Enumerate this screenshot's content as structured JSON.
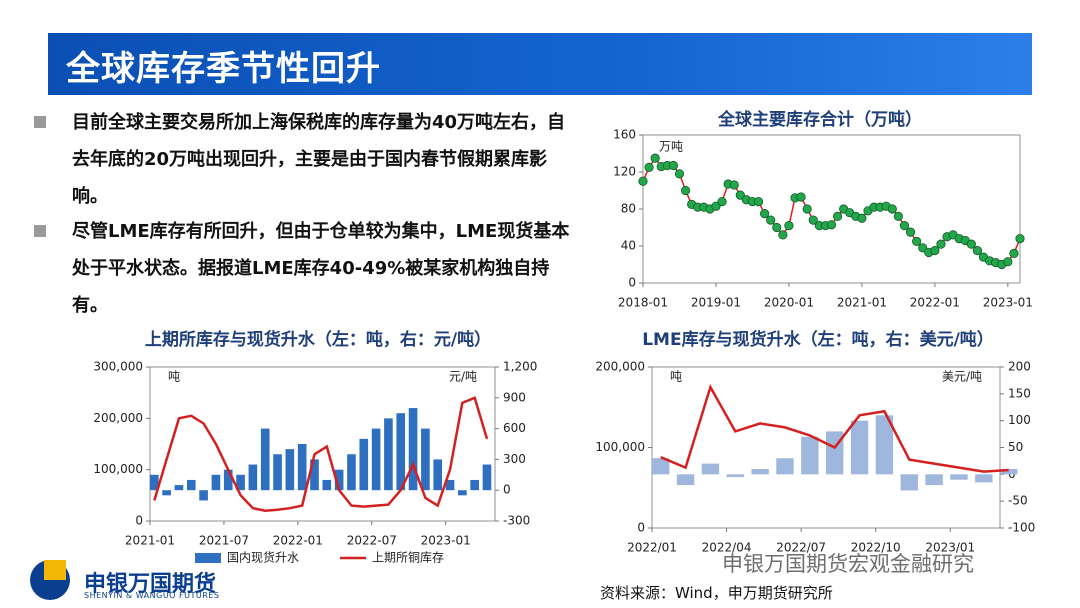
{
  "header": {
    "title": "全球库存季节性回升"
  },
  "bullets": [
    "目前全球主要交易所加上海保税库的库存量为40万吨左右，自去年底的20万吨出现回升，主要是由于国内春节假期累库影响。",
    "尽管LME库存有所回升，但由于仓单较为集中，LME现货基本处于平水状态。据报道LME库存40-49%被某家机构独自持有。"
  ],
  "source": "资料来源：Wind，申万期货研究所",
  "logo": {
    "name": "申银万国期货",
    "subtitle": "SHENYIN & WANGUO FUTURES"
  },
  "watermark": "申银万国期货宏观金融研究",
  "chart_data": [
    {
      "type": "line",
      "title": "全球主要库存合计（万吨）",
      "annotation": "万吨",
      "markers": true,
      "marker_color": "#22a84a",
      "x": [
        "2018-01",
        "2018-02",
        "2018-03",
        "2018-04",
        "2018-05",
        "2018-06",
        "2018-07",
        "2018-08",
        "2018-09",
        "2018-10",
        "2018-11",
        "2018-12",
        "2019-01",
        "2019-02",
        "2019-03",
        "2019-04",
        "2019-05",
        "2019-06",
        "2019-07",
        "2019-08",
        "2019-09",
        "2019-10",
        "2019-11",
        "2019-12",
        "2020-01",
        "2020-02",
        "2020-03",
        "2020-04",
        "2020-05",
        "2020-06",
        "2020-07",
        "2020-08",
        "2020-09",
        "2020-10",
        "2020-11",
        "2020-12",
        "2021-01",
        "2021-02",
        "2021-03",
        "2021-04",
        "2021-05",
        "2021-06",
        "2021-07",
        "2021-08",
        "2021-09",
        "2021-10",
        "2021-11",
        "2021-12",
        "2022-01",
        "2022-02",
        "2022-03",
        "2022-04",
        "2022-05",
        "2022-06",
        "2022-07",
        "2022-08",
        "2022-09",
        "2022-10",
        "2022-11",
        "2022-12",
        "2023-01",
        "2023-02",
        "2023-03"
      ],
      "series": [
        {
          "color": "#e02020",
          "values": [
            110,
            125,
            135,
            126,
            127,
            127,
            118,
            100,
            85,
            82,
            82,
            80,
            83,
            88,
            107,
            106,
            95,
            90,
            88,
            88,
            75,
            68,
            60,
            52,
            62,
            92,
            93,
            80,
            68,
            62,
            62,
            63,
            72,
            80,
            76,
            72,
            70,
            78,
            82,
            82,
            83,
            80,
            72,
            62,
            55,
            45,
            38,
            33,
            35,
            42,
            50,
            52,
            48,
            46,
            42,
            35,
            28,
            24,
            22,
            20,
            23,
            32,
            48
          ]
        }
      ],
      "xlim": [
        "2018-01",
        "2023-03"
      ],
      "xticks": [
        "2018-01",
        "2019-01",
        "2020-01",
        "2021-01",
        "2022-01",
        "2023-01"
      ],
      "ylim": [
        0,
        160
      ],
      "yticks": [
        0,
        40,
        80,
        120,
        160
      ]
    },
    {
      "type": "combo",
      "title": "上期所库存与现货升水（左：吨，右：元/吨）",
      "y_label": "吨",
      "y2_label": "元/吨",
      "legend": true,
      "x": [
        "2021-01",
        "2021-02",
        "2021-03",
        "2021-04",
        "2021-05",
        "2021-06",
        "2021-07",
        "2021-08",
        "2021-09",
        "2021-10",
        "2021-11",
        "2021-12",
        "2022-01",
        "2022-02",
        "2022-03",
        "2022-04",
        "2022-05",
        "2022-06",
        "2022-07",
        "2022-08",
        "2022-09",
        "2022-10",
        "2022-11",
        "2022-12",
        "2023-01",
        "2023-02",
        "2023-03",
        "2023-04"
      ],
      "series": [
        {
          "name": "国内现货升水",
          "type": "bar",
          "axis": "y2",
          "color": "#2e6fc0",
          "values": [
            150,
            -50,
            50,
            100,
            -100,
            150,
            200,
            150,
            250,
            600,
            350,
            400,
            450,
            300,
            100,
            200,
            350,
            500,
            600,
            700,
            750,
            800,
            600,
            300,
            100,
            -50,
            100,
            250
          ]
        },
        {
          "name": "上期所铜库存",
          "type": "line",
          "axis": "y",
          "color": "#d42020",
          "values": [
            40000,
            120000,
            200000,
            205000,
            190000,
            150000,
            100000,
            50000,
            25000,
            20000,
            22000,
            25000,
            30000,
            130000,
            145000,
            60000,
            30000,
            28000,
            30000,
            32000,
            60000,
            110000,
            45000,
            30000,
            100000,
            230000,
            240000,
            160000
          ]
        }
      ],
      "xlim": [
        "2021-01",
        "2023-05"
      ],
      "xticks": [
        "2021-01",
        "2021-07",
        "2022-01",
        "2022-07",
        "2023-01"
      ],
      "ylim": [
        0,
        300000
      ],
      "yticks": [
        0,
        {
          "value": 100000,
          "label": "100,000"
        },
        {
          "value": 200000,
          "label": "200,000"
        },
        {
          "value": 300000,
          "label": "300,000"
        }
      ],
      "y2lim": [
        -300,
        1200
      ],
      "y2ticks": [
        -300,
        0,
        300,
        600,
        900,
        {
          "value": 1200,
          "label": "1,200"
        }
      ]
    },
    {
      "type": "combo",
      "title": "LME库存与现货升水（左：吨，右：美元/吨）",
      "y_label": "吨",
      "y2_label": "美元/吨",
      "legend": false,
      "x": [
        "2022/01",
        "2022/02",
        "2022/03",
        "2022/04",
        "2022/05",
        "2022/06",
        "2022/07",
        "2022/08",
        "2022/09",
        "2022/10",
        "2022/11",
        "2022/12",
        "2023/01",
        "2023/02",
        "2023/03"
      ],
      "series": [
        {
          "type": "bar",
          "axis": "y2",
          "color": "#9fb6dd",
          "values": [
            30,
            -20,
            20,
            -5,
            10,
            30,
            70,
            80,
            100,
            110,
            -30,
            -20,
            -10,
            -15,
            10
          ]
        },
        {
          "type": "line",
          "axis": "y",
          "color": "#d42020",
          "values": [
            88000,
            75000,
            175000,
            120000,
            130000,
            125000,
            115000,
            100000,
            140000,
            145000,
            85000,
            80000,
            75000,
            70000,
            72000
          ]
        }
      ],
      "xlim": [
        "2022/01",
        "2023/03"
      ],
      "xticks": [
        "2022/01",
        "2022/04",
        "2022/07",
        "2022/10",
        "2023/01"
      ],
      "ylim": [
        0,
        200000
      ],
      "yticks": [
        0,
        {
          "value": 100000,
          "label": "100,000"
        },
        {
          "value": 200000,
          "label": "200,000"
        }
      ],
      "y2lim": [
        -100,
        200
      ],
      "y2ticks": [
        -100,
        -50,
        0,
        50,
        100,
        150,
        200
      ]
    }
  ]
}
